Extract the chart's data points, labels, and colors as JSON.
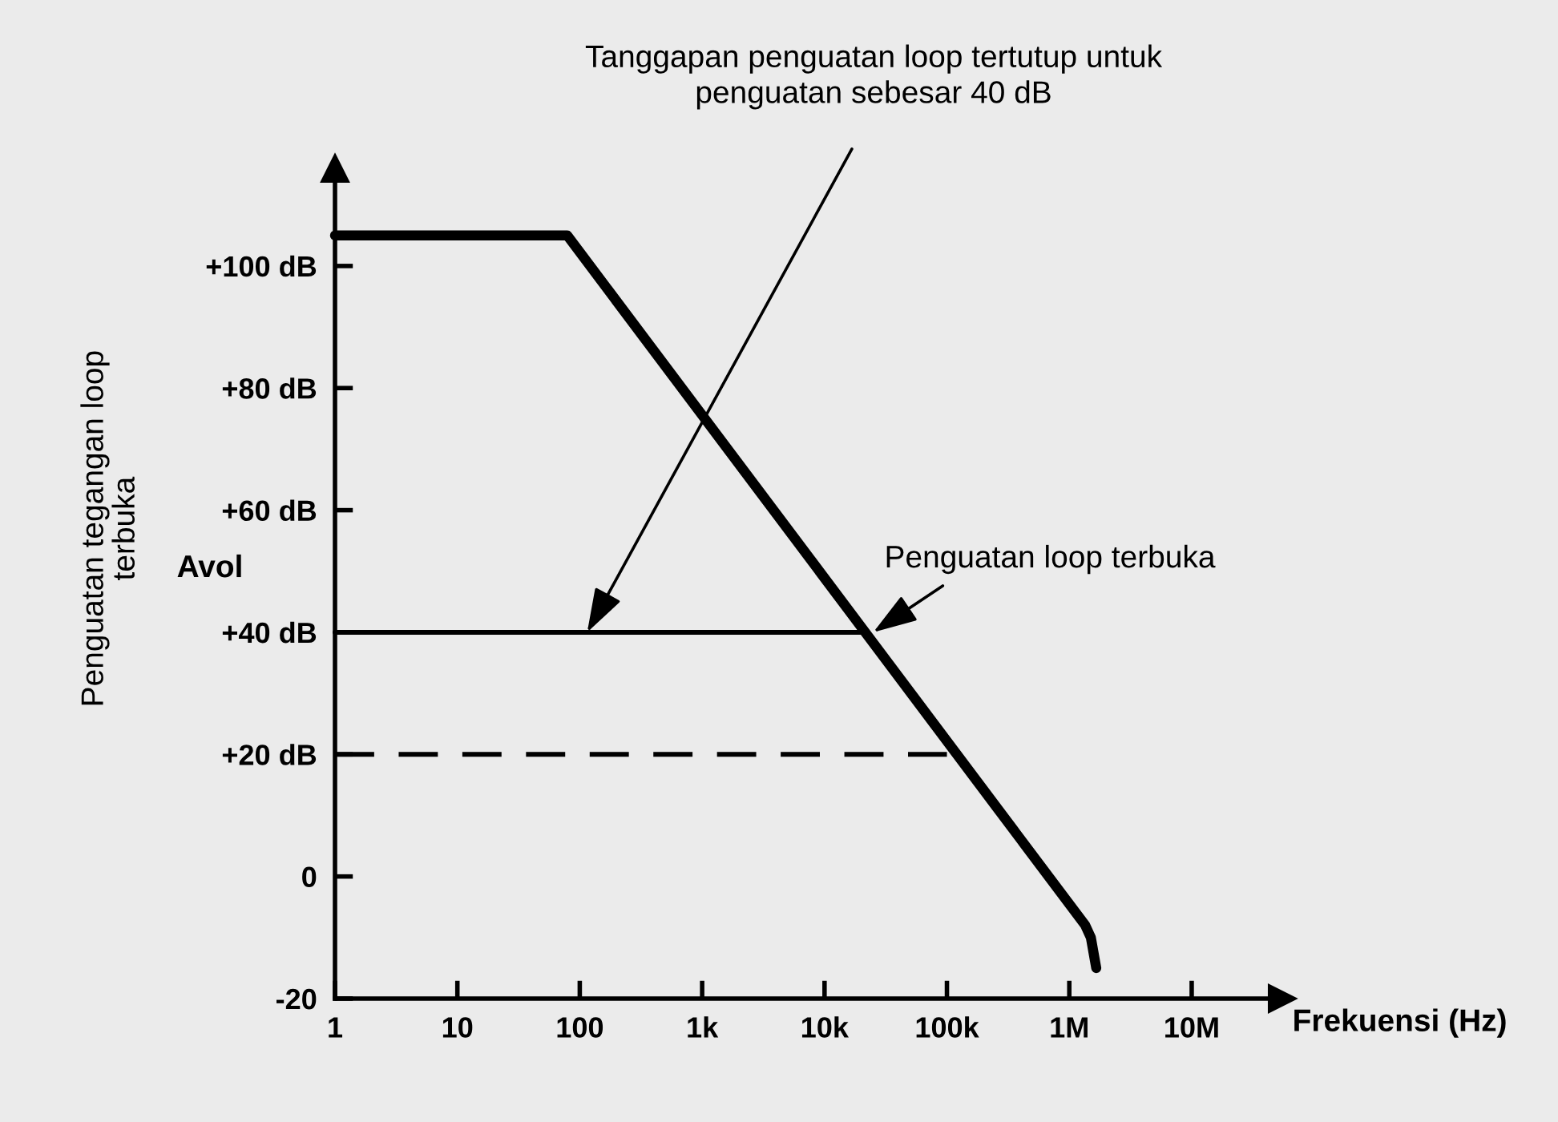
{
  "chart_data": {
    "type": "line",
    "xlabel": "Frekuensi (Hz)",
    "ylabel": "Penguatan tegangan loop\nterbuka",
    "log": "x",
    "xlim": [
      1,
      55000000
    ],
    "xticks": [
      1,
      10,
      100,
      {
        "value": 1000,
        "label": "1k"
      },
      {
        "value": 10000,
        "label": "10k"
      },
      {
        "value": 100000,
        "label": "100k"
      },
      {
        "value": 1000000,
        "label": "1M"
      },
      {
        "value": 10000000,
        "label": "10M"
      }
    ],
    "ylim": [
      -20,
      116
    ],
    "yticks": [
      {
        "value": -20,
        "label": "-20"
      },
      0,
      {
        "value": 20,
        "label": "+20 dB"
      },
      {
        "value": 40,
        "label": "+40 dB"
      },
      {
        "value": 60,
        "label": "+60 dB"
      },
      {
        "value": 80,
        "label": "+80 dB"
      },
      {
        "value": 100,
        "label": "+100 dB"
      }
    ],
    "grid": false,
    "legend": false,
    "series": [
      {
        "color": "#000000",
        "line_style": "solid",
        "x": [
          1,
          79,
          1350000,
          1500000,
          1660000
        ],
        "values": [
          105,
          105,
          -8,
          -10,
          -15
        ]
      },
      {
        "color": "#000000",
        "line_style": "solid",
        "x": [
          1,
          22000
        ],
        "values": [
          40,
          40
        ]
      },
      {
        "color": "#000000",
        "line_style": "dashed",
        "x": [
          1,
          100000
        ],
        "values": [
          20,
          20
        ]
      }
    ],
    "annotations": [
      {
        "text": "Tanggapan penguatan loop tertutup untuk\npenguatan sebesar 40 dB",
        "x": 115,
        "y": 40
      },
      {
        "text": "Penguatan loop terbuka",
        "x": 25000,
        "y": 40
      },
      "Avol"
    ]
  }
}
